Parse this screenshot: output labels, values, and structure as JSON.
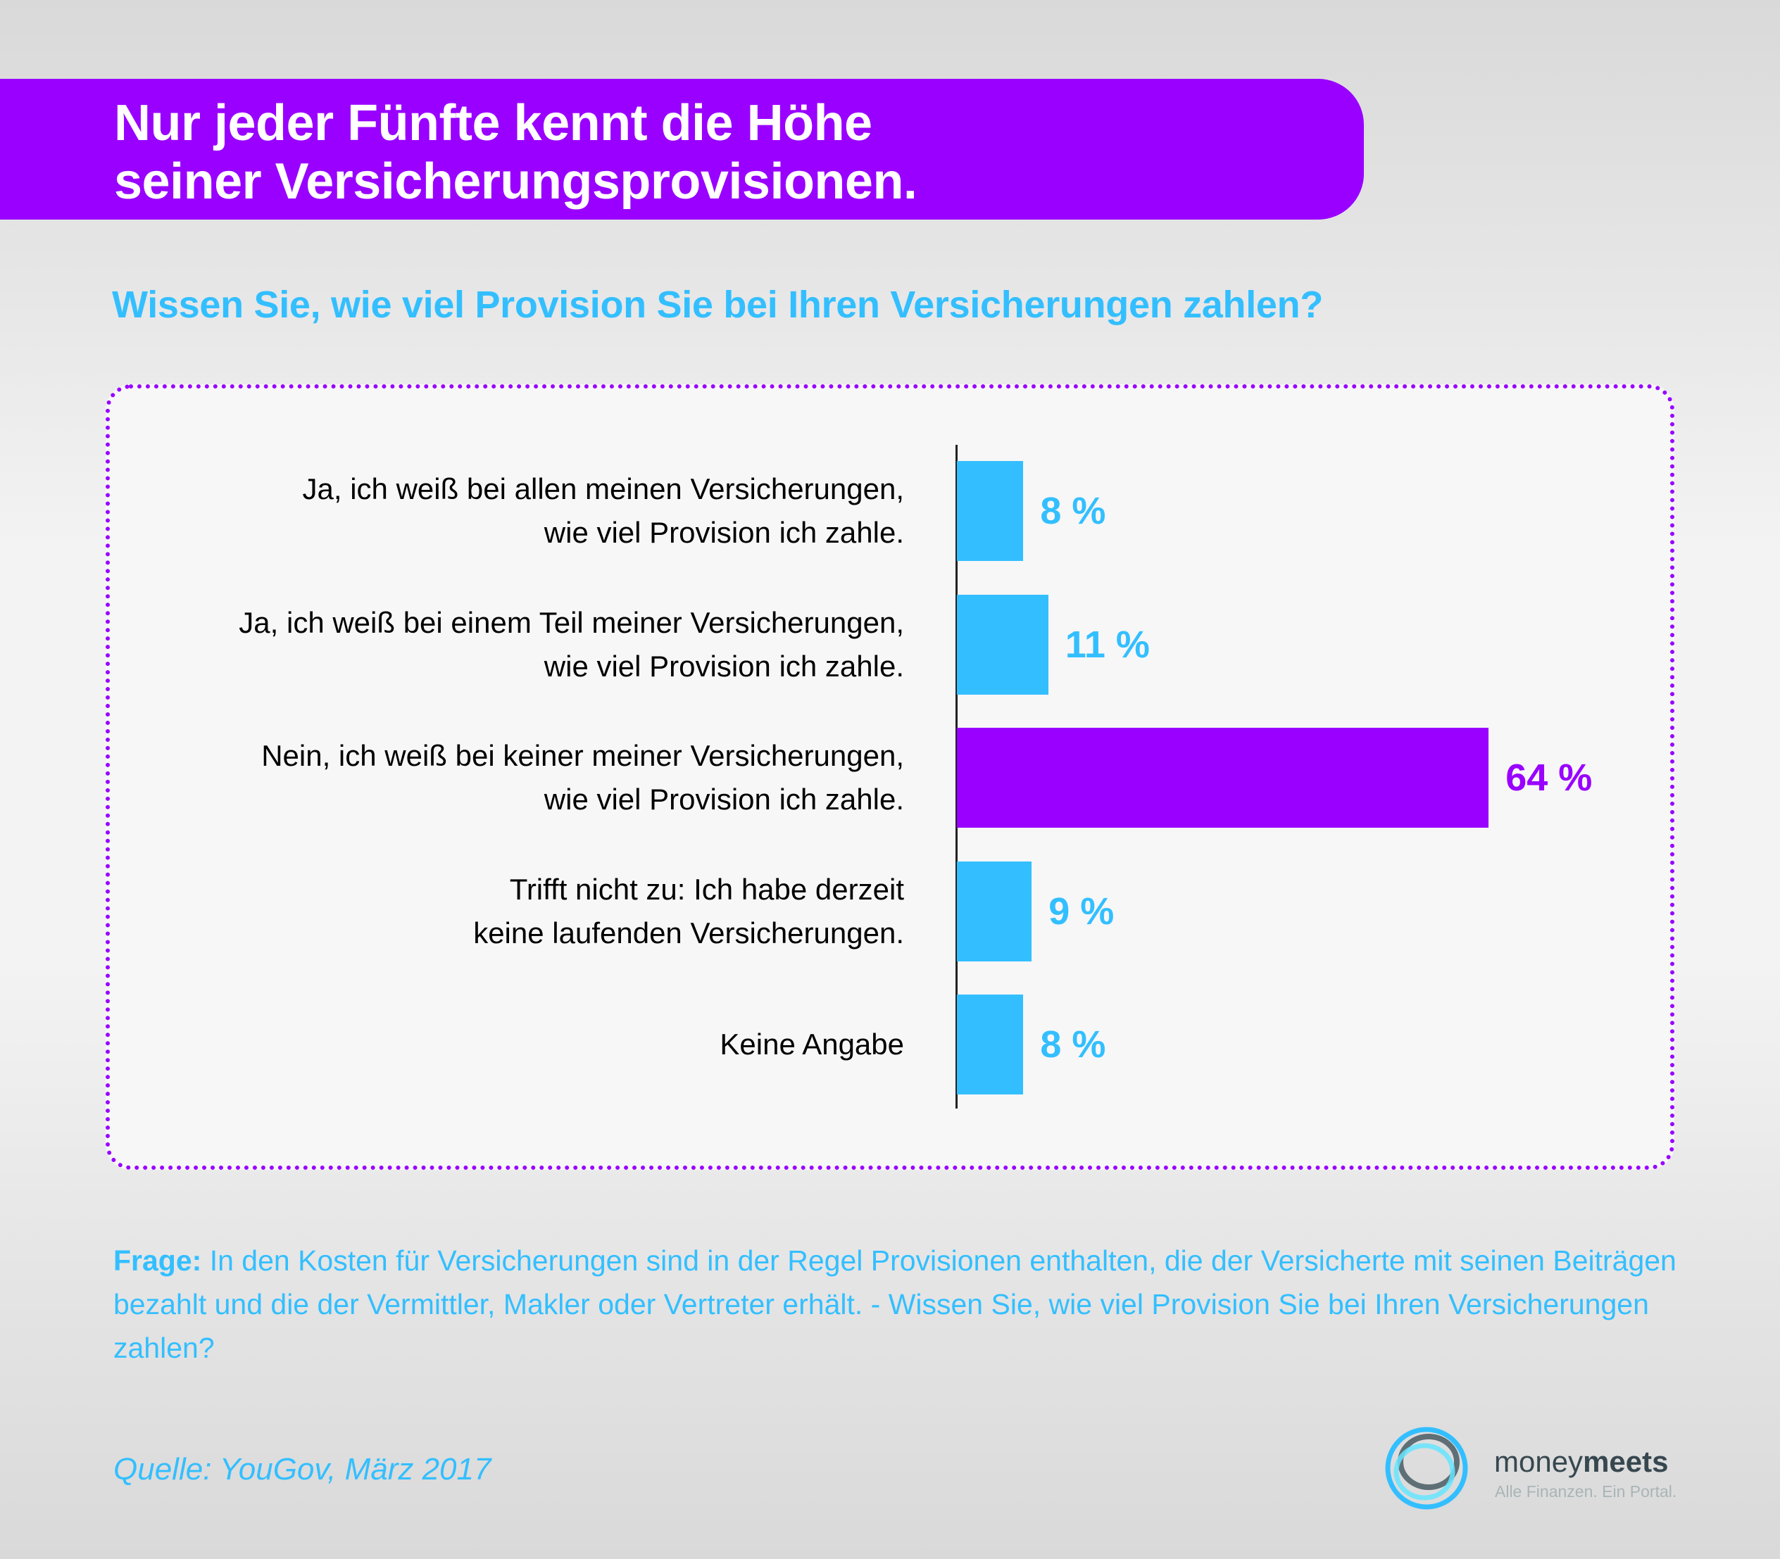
{
  "header": {
    "title_line1": "Nur jeder Fünfte kennt die Höhe",
    "title_line2": "seiner Versicherungsprovisionen."
  },
  "subtitle": "Wissen Sie, wie viel Provision Sie bei Ihren Versicherungen zahlen?",
  "colors": {
    "accent_purple": "#9900ff",
    "accent_blue": "#33bfff",
    "axis": "#222222",
    "label_text": "#000000"
  },
  "chart_data": {
    "type": "bar",
    "orientation": "horizontal",
    "title": "Wissen Sie, wie viel Provision Sie bei Ihren Versicherungen zahlen?",
    "xlabel": "",
    "ylabel": "",
    "unit": "%",
    "xlim": [
      0,
      70
    ],
    "grid": false,
    "legend": "none",
    "categories": [
      [
        "Ja, ich weiß bei allen meinen Versicherungen,",
        "wie viel Provision ich zahle."
      ],
      [
        "Ja, ich weiß bei einem Teil meiner Versicherungen,",
        "wie viel Provision ich zahle."
      ],
      [
        "Nein, ich weiß bei keiner meiner Versicherungen,",
        "wie viel Provision ich zahle."
      ],
      [
        "Trifft nicht zu: Ich habe derzeit",
        "keine laufenden Versicherungen."
      ],
      [
        "Keine Angabe"
      ]
    ],
    "values": [
      8,
      11,
      64,
      9,
      8
    ],
    "value_labels": [
      "8 %",
      "11 %",
      "64 %",
      "9 %",
      "8 %"
    ],
    "bar_colors": [
      "#33bfff",
      "#33bfff",
      "#9900ff",
      "#33bfff",
      "#33bfff"
    ]
  },
  "footer": {
    "question_label": "Frage:",
    "question_text": " In den Kosten für Versicherungen sind in der Regel Provisionen enthalten, die der Versicherte mit seinen Beiträgen bezahlt und die der Vermittler, Makler oder Vertreter erhält. - Wissen Sie, wie viel Provision Sie bei Ihren Versicherungen zahlen?",
    "source": "Quelle: YouGov, März 2017"
  },
  "logo": {
    "name_regular": "money",
    "name_bold": "meets",
    "tagline": "Alle Finanzen. Ein Portal.",
    "icon": "interlocking-rings-icon"
  }
}
